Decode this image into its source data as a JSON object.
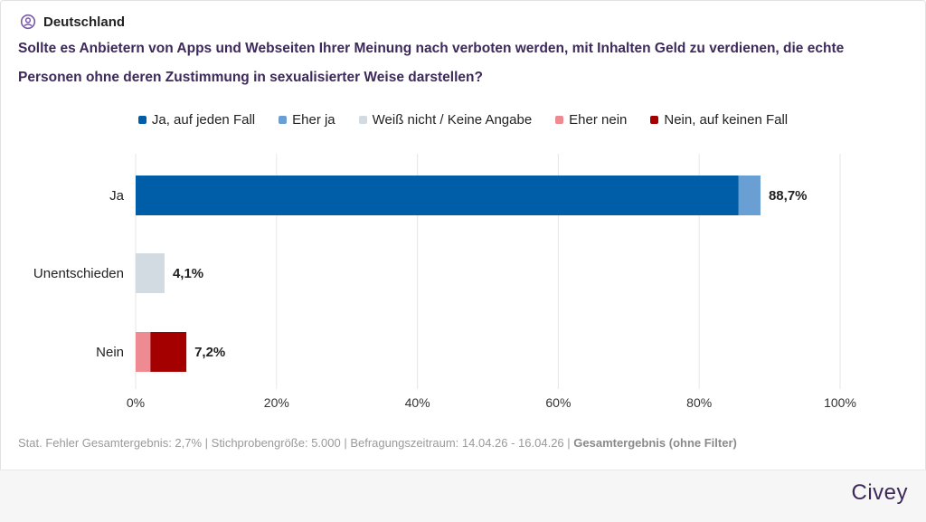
{
  "header": {
    "region": "Deutschland",
    "question": "Sollte es Anbietern von Apps und Webseiten Ihrer Meinung nach verboten werden, mit Inhalten Geld zu verdienen, die echte Personen ohne deren Zustimmung in sexualisierter Weise darstellen?"
  },
  "colors": {
    "ja_auf_jeden_fall": "#005ea8",
    "eher_ja": "#6a9fd4",
    "weiss_nicht": "#d3dbe2",
    "eher_nein": "#ed8a92",
    "nein_auf_keinen_fall": "#a50000",
    "grid": "#e6e6e6"
  },
  "chart_data": {
    "type": "bar",
    "orientation": "horizontal",
    "stacked": true,
    "categories": [
      "Ja",
      "Unentschieden",
      "Nein"
    ],
    "series": [
      {
        "name": "Ja, auf jeden Fall",
        "color": "#005ea8",
        "values": [
          85.6,
          0,
          0
        ]
      },
      {
        "name": "Eher ja",
        "color": "#6a9fd4",
        "values": [
          3.1,
          0,
          0
        ]
      },
      {
        "name": "Weiß nicht / Keine Angabe",
        "color": "#d3dbe2",
        "values": [
          0,
          4.1,
          0
        ]
      },
      {
        "name": "Eher nein",
        "color": "#ed8a92",
        "values": [
          0,
          0,
          2.1
        ]
      },
      {
        "name": "Nein, auf keinen Fall",
        "color": "#a50000",
        "values": [
          0,
          0,
          5.1
        ]
      }
    ],
    "totals": [
      "88,7%",
      "4,1%",
      "7,2%"
    ],
    "xlim": [
      0,
      100
    ],
    "xticks": [
      "0%",
      "20%",
      "40%",
      "60%",
      "80%",
      "100%"
    ],
    "grid": true,
    "legend_position": "top"
  },
  "footer": {
    "meta": "Stat. Fehler Gesamtergebnis: 2,7% | Stichprobengröße: 5.000 | Befragungszeitraum: 14.04.26 - 16.04.26 | ",
    "filter": "Gesamtergebnis (ohne Filter)",
    "brand": "Civey"
  }
}
